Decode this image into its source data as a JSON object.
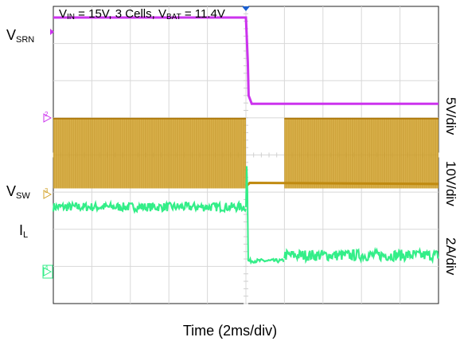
{
  "chart_data": {
    "type": "line",
    "title": {
      "prefix_v": "V",
      "vin_sub": "IN",
      "vin_eq": " = 15V, 3 Cells, ",
      "vbat_v": "V",
      "vbat_sub": "BAT",
      "vbat_eq": " = 11.4V"
    },
    "xlabel": "Time (2ms/div)",
    "x_divisions": 10,
    "y_divisions": 8,
    "grid": true,
    "trigger_time_div": 5.0,
    "channels": [
      {
        "name": "V_SRN",
        "label_main": "V",
        "label_sub": "SRN",
        "scale": "5V/div",
        "color": "#cc33ee",
        "marker": "2",
        "style": "line",
        "points": [
          [
            0,
            7.7
          ],
          [
            5.0,
            7.7
          ],
          [
            5.02,
            7.2
          ],
          [
            5.05,
            6.5
          ],
          [
            5.07,
            5.6
          ],
          [
            5.15,
            5.38
          ],
          [
            10,
            5.38
          ]
        ]
      },
      {
        "name": "V_SW",
        "label_main": "V",
        "label_sub": "SW",
        "scale": "10V/div",
        "color": "#d4a52e",
        "marker": "3",
        "style": "switching",
        "segments": [
          {
            "x0": 0.0,
            "x1": 5.0,
            "top": 5.0,
            "bottom": 3.1
          },
          {
            "x0": 6.0,
            "x1": 10.0,
            "top": 5.0,
            "bottom": 3.1
          }
        ],
        "baseline": [
          [
            5.0,
            3.15
          ],
          [
            5.1,
            3.25
          ],
          [
            10,
            3.22
          ]
        ]
      },
      {
        "name": "I_L",
        "label_main": "I",
        "label_sub": "L",
        "scale": "2A/div",
        "color": "#33ee88",
        "marker": "4",
        "style": "noisy",
        "segments": [
          {
            "x0": 0.0,
            "x1": 5.0,
            "level": 2.6,
            "ripple": 0.12
          },
          {
            "x0": 5.05,
            "x1": 6.0,
            "level": 1.15,
            "ripple": 0.05
          },
          {
            "x0": 6.0,
            "x1": 10.0,
            "level": 1.3,
            "ripple": 0.15
          }
        ],
        "edge": [
          [
            5.0,
            2.6
          ],
          [
            5.02,
            3.7
          ],
          [
            5.04,
            3.05
          ],
          [
            5.06,
            1.15
          ]
        ]
      }
    ]
  }
}
